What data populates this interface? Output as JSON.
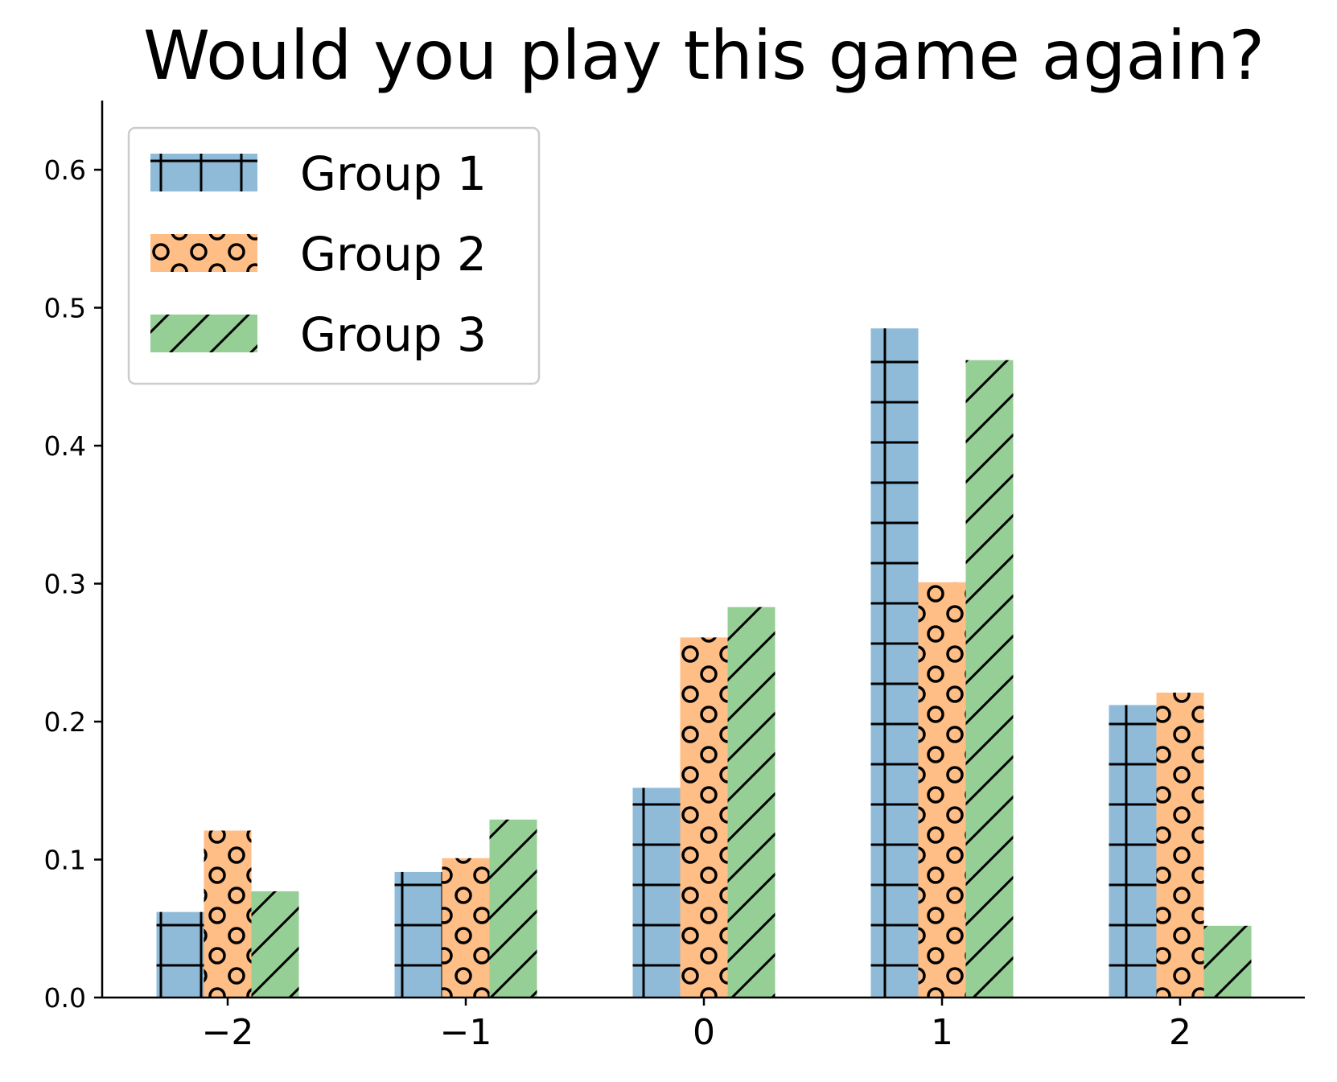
{
  "chart_data": {
    "type": "bar",
    "title": "Would you play this game again?",
    "xlabel": "",
    "ylabel": "",
    "categories": [
      "−2",
      "−1",
      "0",
      "1",
      "2"
    ],
    "series": [
      {
        "name": "Group 1",
        "values": [
          0.062,
          0.091,
          0.152,
          0.485,
          0.212
        ],
        "color": "#8fbbd9",
        "hatch": "grid"
      },
      {
        "name": "Group 2",
        "values": [
          0.121,
          0.101,
          0.261,
          0.301,
          0.221
        ],
        "color": "#ffbe86",
        "hatch": "circles"
      },
      {
        "name": "Group 3",
        "values": [
          0.077,
          0.129,
          0.283,
          0.462,
          0.052
        ],
        "color": "#95cf95",
        "hatch": "diagonal"
      }
    ],
    "yticks": [
      "0.0",
      "0.1",
      "0.2",
      "0.3",
      "0.4",
      "0.5",
      "0.6"
    ],
    "ylim": [
      0,
      0.65
    ],
    "grid": false,
    "legend_position": "top-left"
  }
}
